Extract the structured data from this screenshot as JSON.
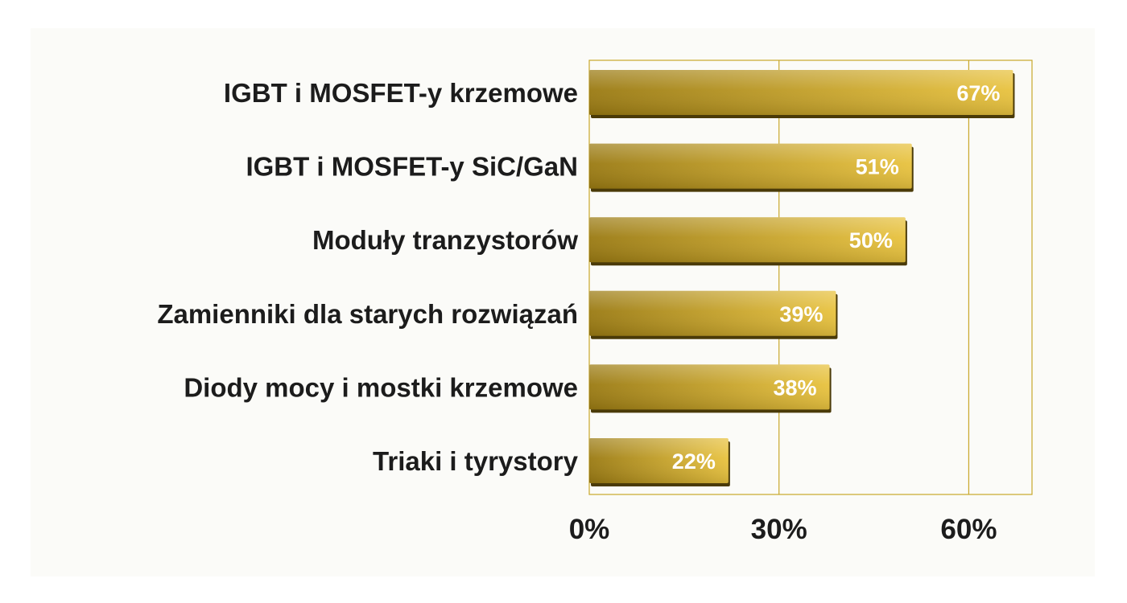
{
  "chart_data": {
    "type": "bar",
    "orientation": "horizontal",
    "categories": [
      "IGBT i MOSFET-y krzemowe",
      "IGBT i MOSFET-y SiC/GaN",
      "Moduły tranzystorów",
      "Zamienniki dla starych rozwiązań",
      "Diody mocy i mostki krzemowe",
      "Triaki i tyrystory"
    ],
    "values": [
      67,
      51,
      50,
      39,
      38,
      22
    ],
    "data_labels": [
      "67%",
      "51%",
      "50%",
      "39%",
      "38%",
      "22%"
    ],
    "title": "",
    "xlabel": "",
    "ylabel": "",
    "xlim": [
      0,
      70
    ],
    "ticks": [
      {
        "value": 0,
        "label": "0%"
      },
      {
        "value": 30,
        "label": "30%"
      },
      {
        "value": 60,
        "label": "60%"
      }
    ],
    "grid": "vertical",
    "legend": "none",
    "colors": {
      "bar_dark": "#9a7a12",
      "bar_light": "#e8c23e",
      "bar_shadow": "#4a3a08",
      "grid": "#c9a82a",
      "label_text": "#1c1c1c",
      "value_text": "#ffffff"
    }
  }
}
